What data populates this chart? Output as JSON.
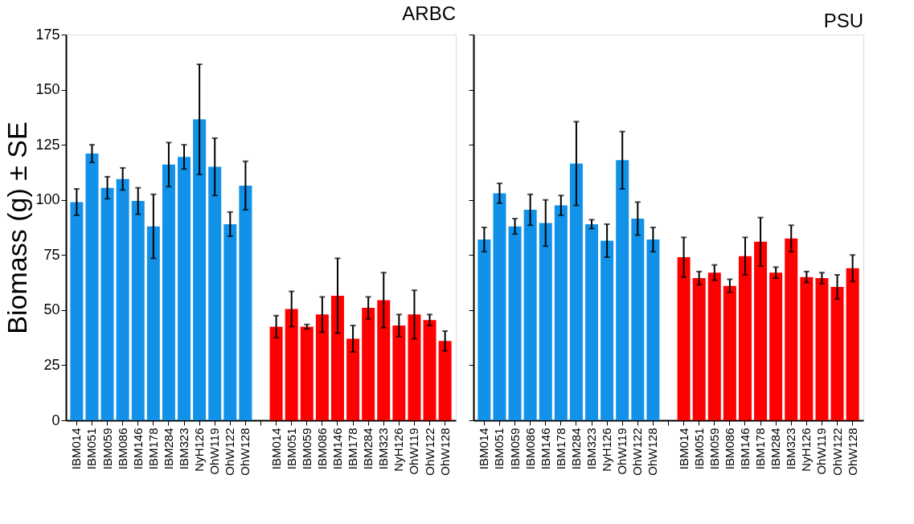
{
  "chart_data": [
    {
      "type": "bar",
      "title": "ARBC",
      "ylabel": "Biomass (g) ± SE",
      "categories": [
        "IBM014",
        "IBM051",
        "IBM059",
        "IBM086",
        "IBM146",
        "IBM178",
        "IBM284",
        "IBM323",
        "NyH126",
        "OhW119",
        "OhW122",
        "OhW128",
        null,
        "IBM014",
        "IBM051",
        "IBM059",
        "IBM086",
        "IBM146",
        "IBM178",
        "IBM284",
        "IBM323",
        "NyH126",
        "OhW119",
        "OhW122",
        "OhW128"
      ],
      "series": [
        {
          "color": "#1192e8",
          "values": [
            99,
            121,
            105.5,
            109.5,
            99.5,
            88,
            116,
            119.5,
            136.5,
            115,
            89,
            106.5,
            null,
            null,
            null,
            null,
            null,
            null,
            null,
            null,
            null,
            null,
            null,
            null,
            null
          ],
          "errors": [
            6,
            4,
            5,
            5,
            6,
            14.5,
            10,
            5.5,
            25,
            13,
            5.5,
            11,
            null,
            null,
            null,
            null,
            null,
            null,
            null,
            null,
            null,
            null,
            null,
            null,
            null
          ]
        },
        {
          "color": "#ff0000",
          "values": [
            null,
            null,
            null,
            null,
            null,
            null,
            null,
            null,
            null,
            null,
            null,
            null,
            null,
            42.5,
            50.5,
            42.5,
            48,
            56.5,
            37,
            51,
            54.5,
            43,
            48,
            45.5,
            36
          ],
          "errors": [
            null,
            null,
            null,
            null,
            null,
            null,
            null,
            null,
            null,
            null,
            null,
            null,
            null,
            5,
            8,
            1,
            8,
            17,
            6,
            5,
            12.5,
            5,
            11,
            2.5,
            4.5
          ]
        }
      ],
      "ylim": [
        0,
        175
      ],
      "yticks": [
        0,
        25,
        50,
        75,
        100,
        125,
        150,
        175
      ],
      "grid": false,
      "legend": false
    },
    {
      "type": "bar",
      "title": "PSU",
      "categories": [
        "IBM014",
        "IBM051",
        "IBM059",
        "IBM086",
        "IBM146",
        "IBM178",
        "IBM284",
        "IBM323",
        "NyH126",
        "OhW119",
        "OhW122",
        "OhW128",
        null,
        "IBM014",
        "IBM051",
        "IBM059",
        "IBM086",
        "IBM146",
        "IBM178",
        "IBM284",
        "IBM323",
        "NyH126",
        "OhW119",
        "OhW122",
        "OhW128"
      ],
      "series": [
        {
          "color": "#1192e8",
          "values": [
            82,
            103,
            88,
            95.5,
            89.5,
            97.5,
            116.5,
            89,
            81.5,
            118,
            91.5,
            82,
            null,
            null,
            null,
            null,
            null,
            null,
            null,
            null,
            null,
            null,
            null,
            null,
            null
          ],
          "errors": [
            5.5,
            4.5,
            3.5,
            7,
            10.5,
            4.5,
            19,
            2,
            7.5,
            13,
            7.5,
            5.5,
            null,
            null,
            null,
            null,
            null,
            null,
            null,
            null,
            null,
            null,
            null,
            null,
            null
          ]
        },
        {
          "color": "#ff0000",
          "values": [
            null,
            null,
            null,
            null,
            null,
            null,
            null,
            null,
            null,
            null,
            null,
            null,
            null,
            74,
            64.5,
            67,
            61,
            74.5,
            81,
            67,
            82.5,
            65,
            64.5,
            60.5,
            69
          ],
          "errors": [
            null,
            null,
            null,
            null,
            null,
            null,
            null,
            null,
            null,
            null,
            null,
            null,
            null,
            9,
            3,
            3.5,
            3,
            8.5,
            11,
            2.5,
            6,
            2.5,
            2.5,
            5.5,
            6
          ]
        }
      ],
      "ylim": [
        0,
        175
      ],
      "yticks": [
        0,
        25,
        50,
        75,
        100,
        125,
        150,
        175
      ],
      "tick_labels": "x",
      "grid": false,
      "legend": false
    }
  ]
}
